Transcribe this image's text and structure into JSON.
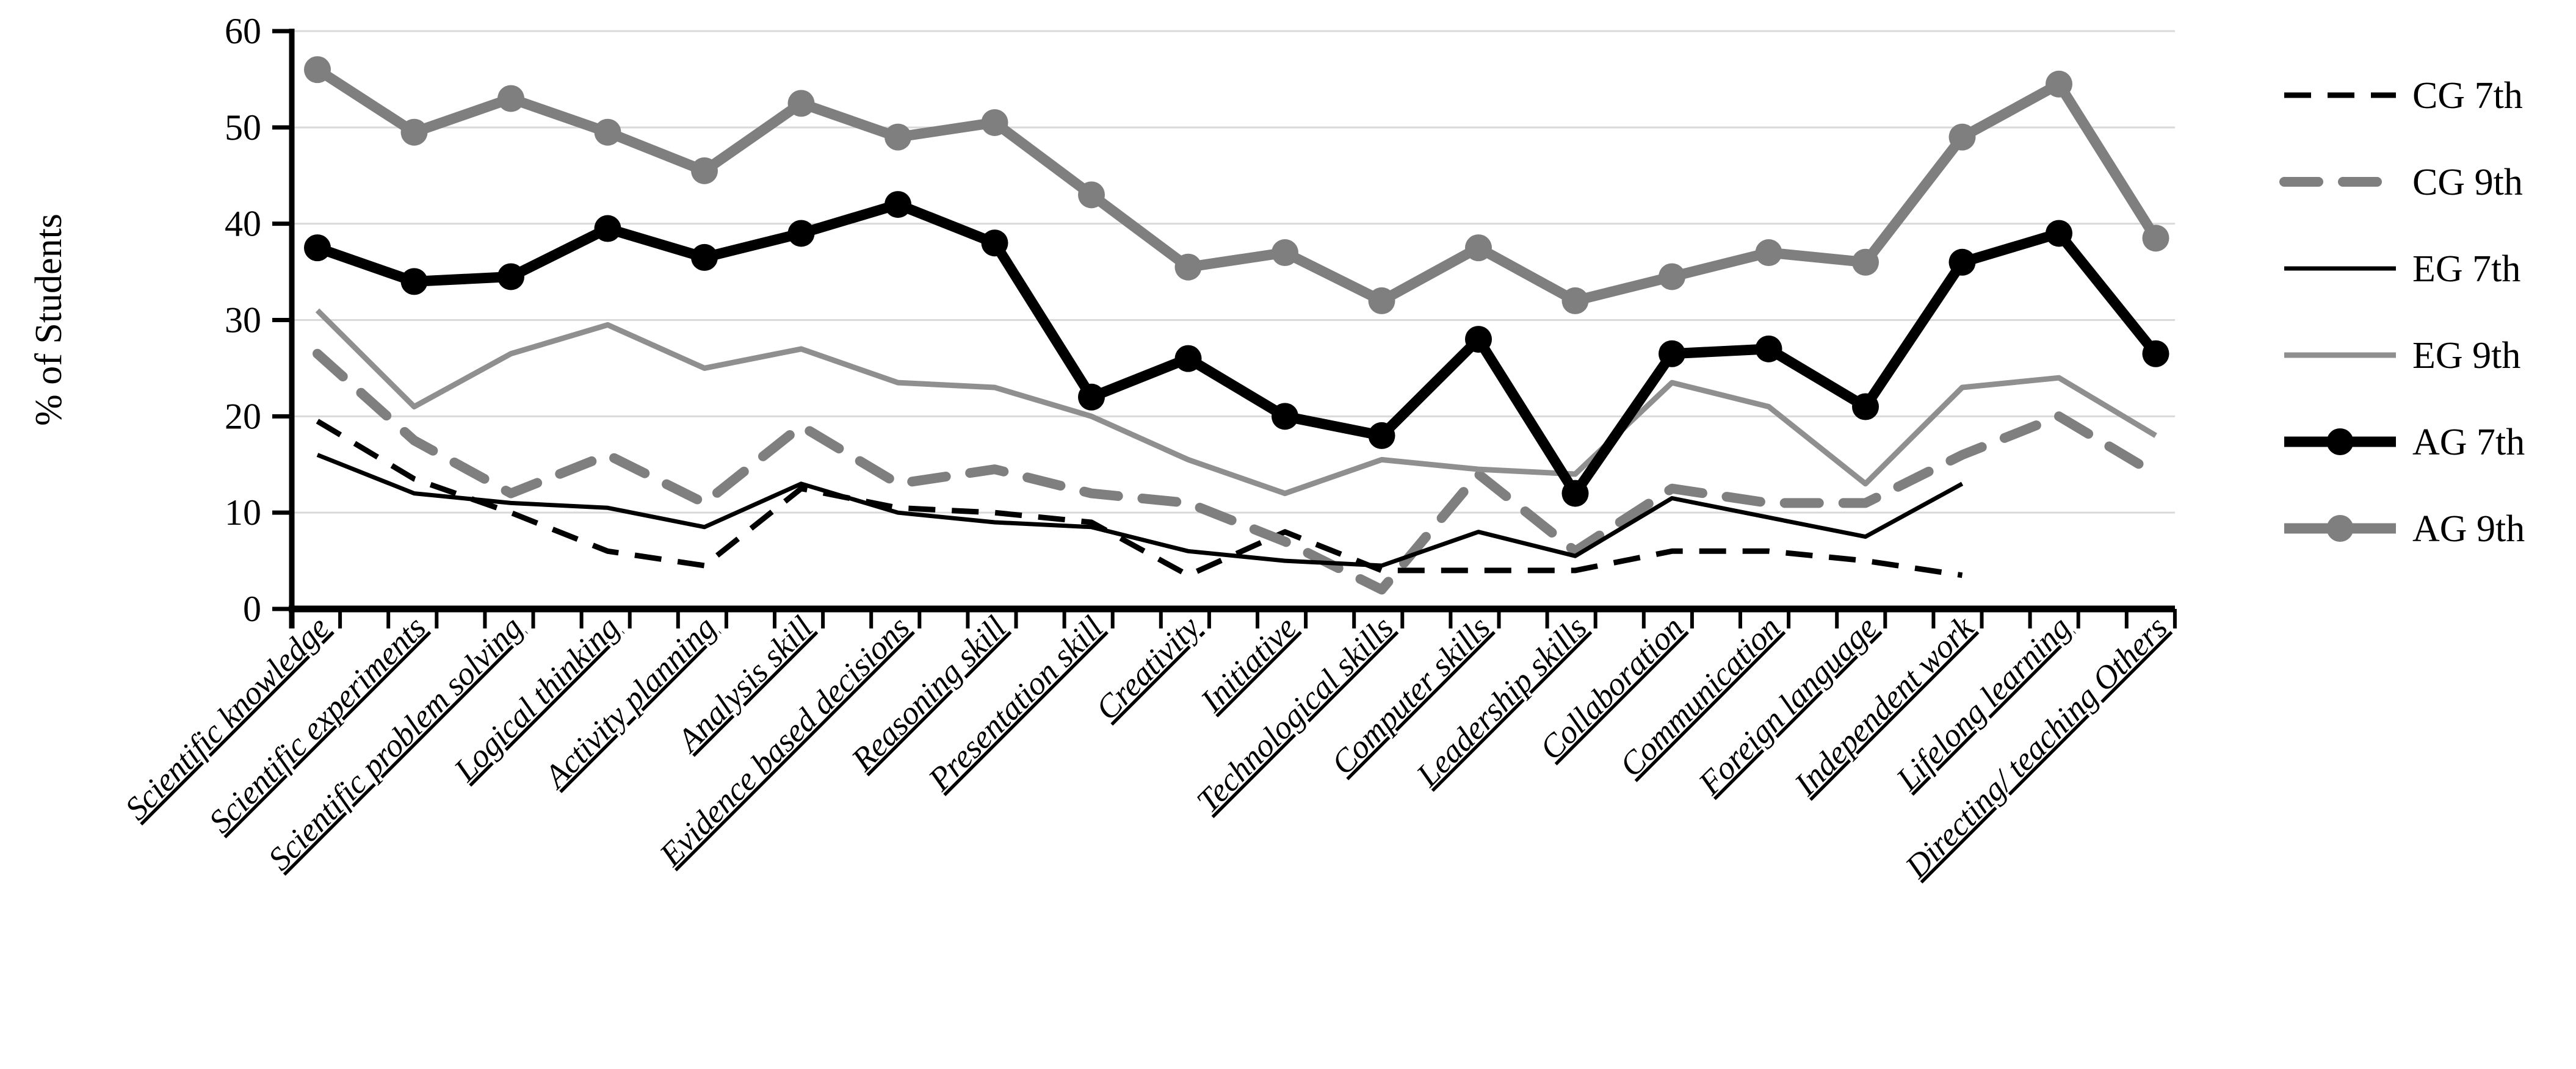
{
  "chart_data": {
    "type": "line",
    "title": "",
    "ylabel": "% of Students",
    "xlabel": "",
    "ylim": [
      0,
      60
    ],
    "yticks": [
      0,
      10,
      20,
      30,
      40,
      50,
      60
    ],
    "grid": "horizontal",
    "legend_position": "right",
    "categories": [
      "Scientific knowledge",
      "Scientific experiments",
      "Scientific problem solving",
      "Logical thinking",
      "Activity planning",
      "Analysis skill",
      "Evidence based decisions",
      "Reasoning skill",
      "Presentation skill",
      "Creativity",
      "Initiative",
      "Technological skills",
      "Computer skills",
      "Leadership skills",
      "Collaboration",
      "Communication",
      "Foreign language",
      "Independent work",
      "Lifelong learning",
      "Directing/ teaching Others"
    ],
    "series": [
      {
        "name": "CG 7th",
        "color": "#000000",
        "line_style": "dashed",
        "weight": "thin",
        "markers": false,
        "values": [
          19.5,
          13.5,
          10,
          6,
          4.5,
          12.5,
          10.5,
          10,
          9,
          3.5,
          8,
          4,
          4,
          4,
          6,
          6,
          5,
          3.5,
          null,
          null
        ]
      },
      {
        "name": "CG 9th",
        "color": "#7f7f7f",
        "line_style": "dashed",
        "weight": "thick",
        "markers": false,
        "values": [
          26.5,
          17.5,
          12,
          16,
          11,
          19,
          13,
          14.5,
          12,
          11,
          7,
          2,
          14,
          6,
          12.5,
          11,
          11,
          16,
          20,
          14
        ]
      },
      {
        "name": "EG 7th",
        "color": "#000000",
        "line_style": "solid",
        "weight": "thin",
        "markers": false,
        "values": [
          16,
          12,
          11,
          10.5,
          8.5,
          13,
          10,
          9,
          8.5,
          6,
          5,
          4.5,
          8,
          5.5,
          11.5,
          9.5,
          7.5,
          13,
          null,
          null
        ]
      },
      {
        "name": "EG 9th",
        "color": "#8f8f8f",
        "line_style": "solid",
        "weight": "thin",
        "markers": false,
        "values": [
          31,
          21,
          26.5,
          29.5,
          25,
          27,
          23.5,
          23,
          20,
          15.5,
          12,
          15.5,
          14.5,
          14,
          23.5,
          21,
          13,
          23,
          24,
          18
        ]
      },
      {
        "name": "AG 7th",
        "color": "#000000",
        "line_style": "solid",
        "weight": "thick",
        "markers": true,
        "values": [
          37.5,
          34,
          34.5,
          39.5,
          36.5,
          39,
          42,
          38,
          22,
          26,
          20,
          18,
          28,
          12,
          26.5,
          27,
          21,
          36,
          39,
          26.5
        ]
      },
      {
        "name": "AG 9th",
        "color": "#7f7f7f",
        "line_style": "solid",
        "weight": "thick",
        "markers": true,
        "values": [
          56,
          49.5,
          53,
          49.5,
          45.5,
          52.5,
          49,
          50.5,
          43,
          35.5,
          37,
          32,
          37.5,
          32,
          34.5,
          37,
          36,
          49,
          54.5,
          38.5
        ]
      }
    ],
    "colors": {
      "black": "#000000",
      "gray": "#7f7f7f",
      "gridline": "#d9d9d9"
    }
  }
}
